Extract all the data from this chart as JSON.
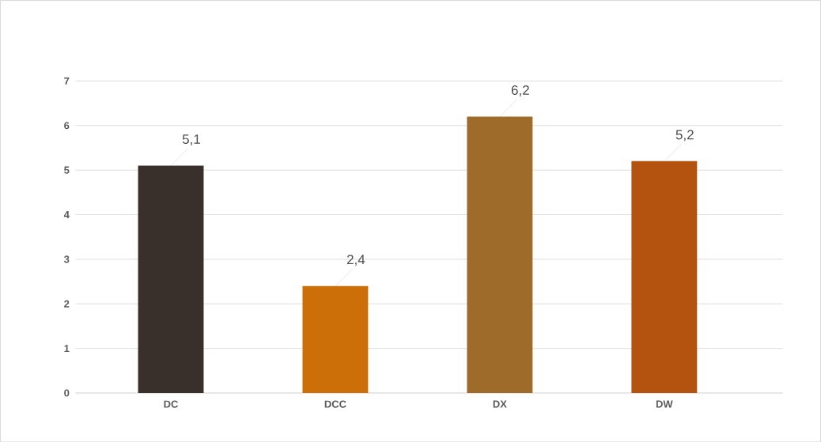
{
  "chart_data": {
    "type": "bar",
    "categories": [
      "DC",
      "DCC",
      "DX",
      "DW"
    ],
    "values": [
      5.1,
      2.4,
      6.2,
      5.2
    ],
    "colors": [
      "#3a302b",
      "#cc6f08",
      "#9f6b2b",
      "#b3530f"
    ],
    "value_labels": [
      "5,1",
      "2,4",
      "6,2",
      "5,2"
    ],
    "ylim": [
      0,
      7
    ],
    "yticks": [
      0,
      1,
      2,
      3,
      4,
      5,
      6,
      7
    ],
    "grid": "y"
  }
}
